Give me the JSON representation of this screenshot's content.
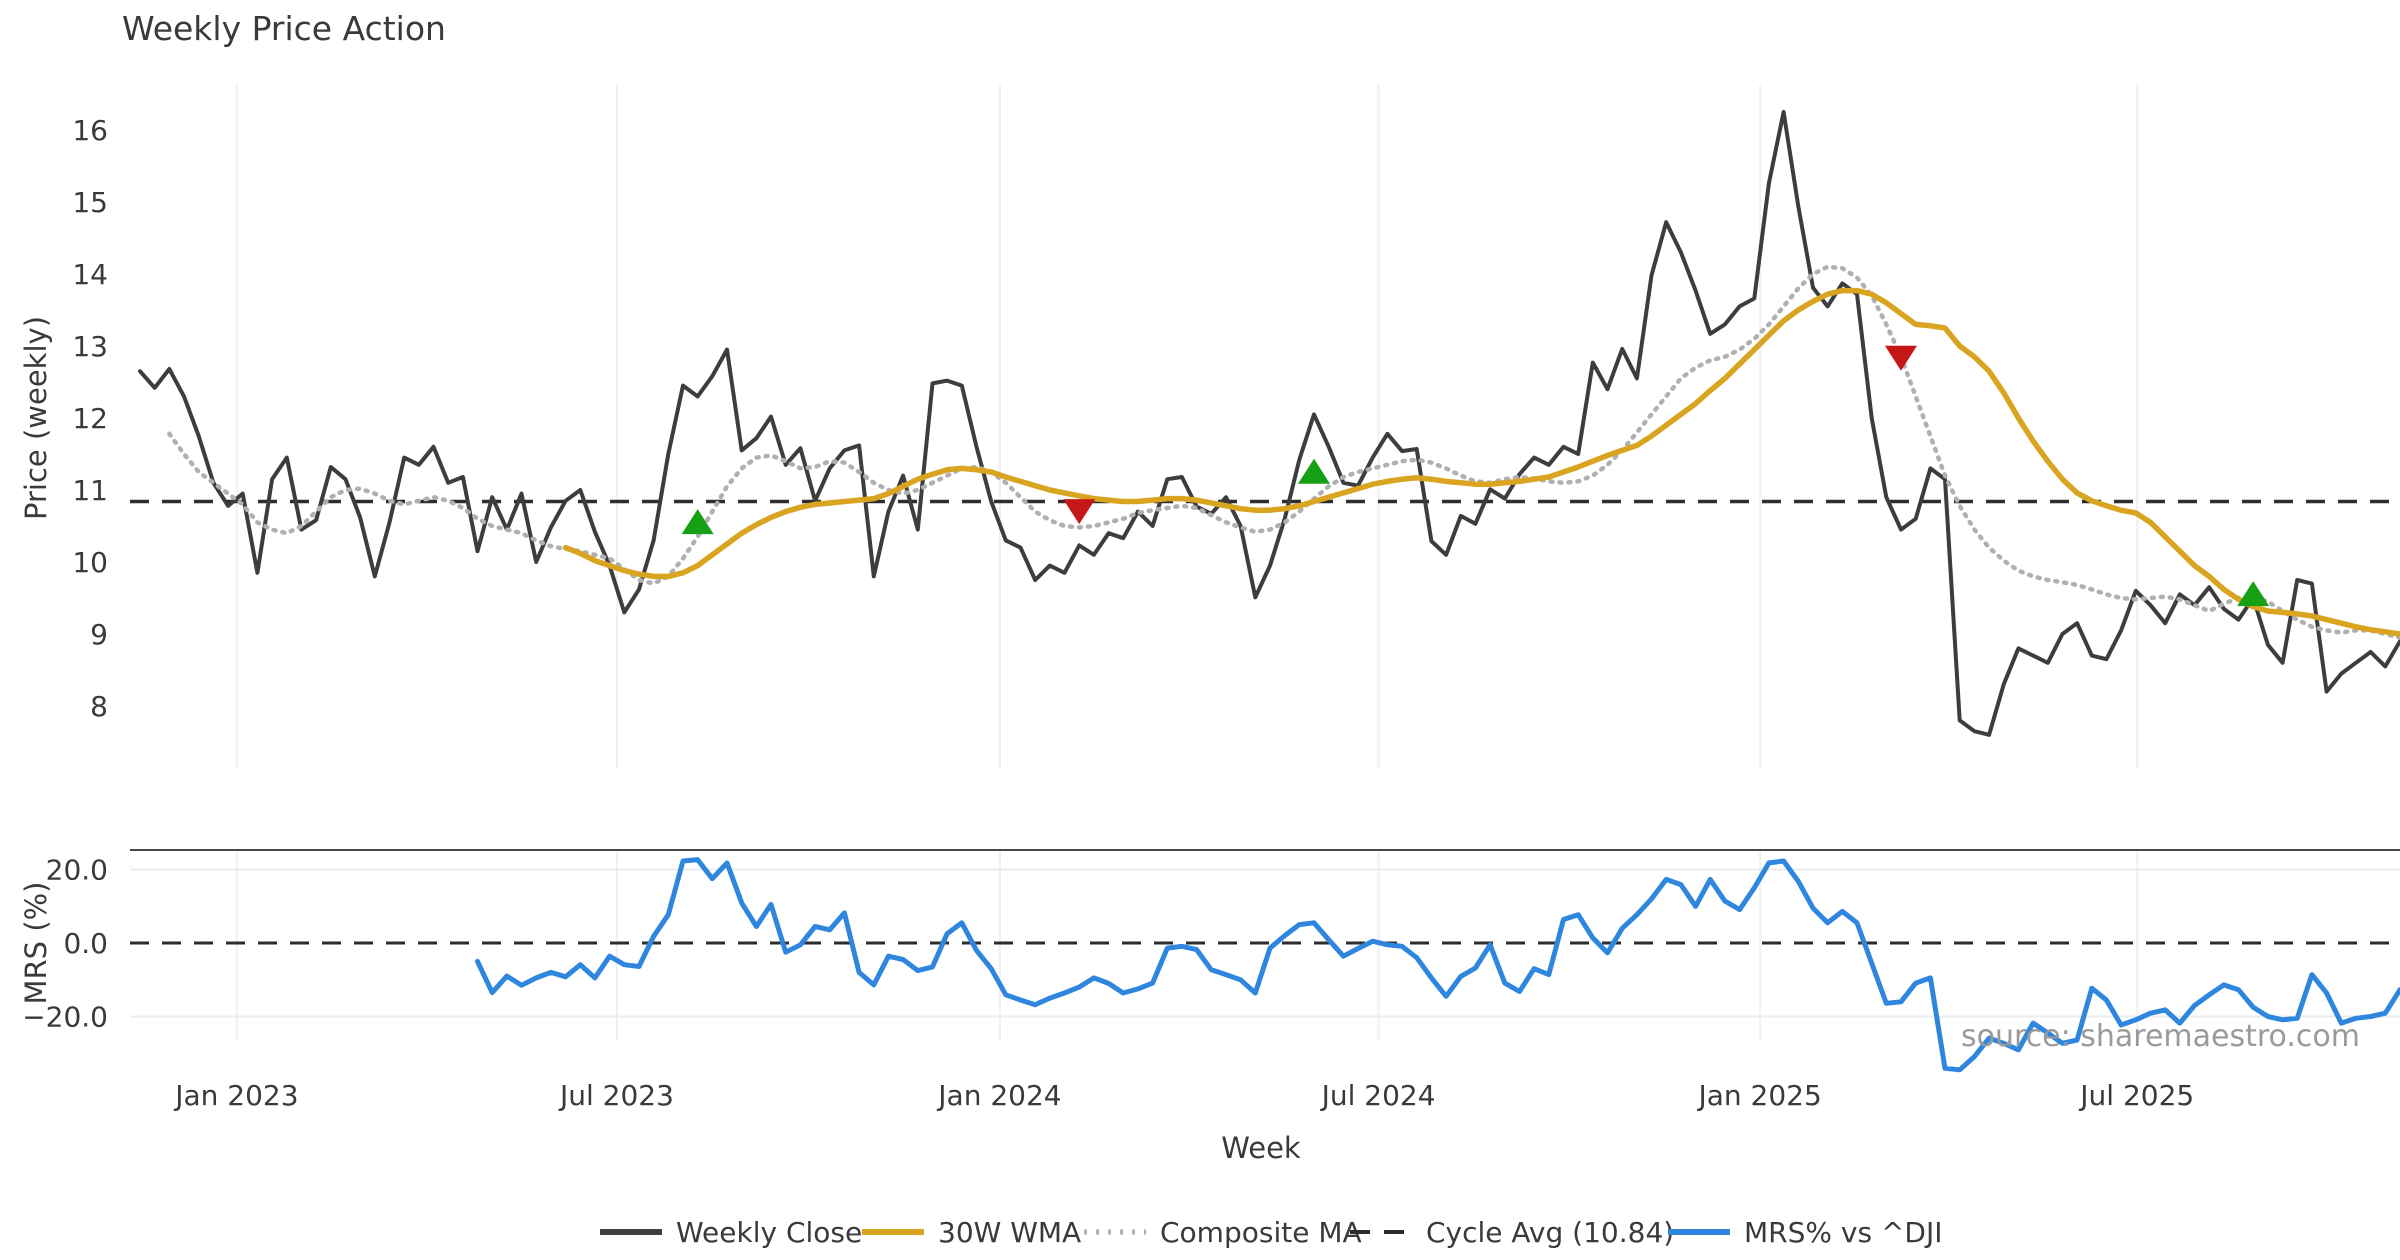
{
  "title": "Weekly Price Action",
  "source_watermark": "source: sharemaestro.com",
  "colors": {
    "close": "#3d3d3d",
    "wma": "#d9a521",
    "composite": "#b0b0b0",
    "cycle_dash": "#2d2d2d",
    "mrs": "#2e86de",
    "buy_marker": "#15a015",
    "sell_marker": "#c51717",
    "grid": "#eff0f3",
    "panel_spine": "#4a4a4a",
    "text": "#3a3a3a",
    "watermark": "#9a9a9a"
  },
  "chart_data": {
    "type": "line",
    "x_axis": {
      "label": "Week",
      "ticks": [
        {
          "label": "Jan 2023",
          "week": 6.6
        },
        {
          "label": "Jul 2023",
          "week": 32.5
        },
        {
          "label": "Jan 2024",
          "week": 58.6
        },
        {
          "label": "Jul 2024",
          "week": 84.4
        },
        {
          "label": "Jan 2025",
          "week": 110.4
        },
        {
          "label": "Jul 2025",
          "week": 136.1
        }
      ],
      "total_weeks": 154
    },
    "panels": [
      {
        "name": "price",
        "ylabel": "Price (weekly)",
        "yticks": [
          16,
          15,
          14,
          13,
          12,
          11,
          10,
          9,
          8
        ],
        "ylim": [
          7.1,
          16.6
        ],
        "grid": "vertical"
      },
      {
        "name": "mrs",
        "ylabel": "MRS (%)",
        "yticks": [
          {
            "v": 20,
            "label": "20.0"
          },
          {
            "v": 0,
            "label": "0.0"
          },
          {
            "v": -20,
            "label": "−20.0"
          }
        ],
        "ylim": [
          -36,
          25
        ],
        "zero_line": "dashed"
      }
    ],
    "cycle_avg": 10.84,
    "series": [
      {
        "name": "Weekly Close",
        "panel": "price",
        "style": "solid",
        "start_week": 0,
        "values": [
          12.65,
          12.42,
          12.68,
          12.3,
          11.75,
          11.1,
          10.78,
          10.95,
          9.85,
          11.15,
          11.45,
          10.45,
          10.58,
          11.32,
          11.15,
          10.62,
          9.8,
          10.55,
          11.45,
          11.35,
          11.6,
          11.1,
          11.18,
          10.15,
          10.9,
          10.45,
          10.95,
          10.0,
          10.48,
          10.85,
          11.0,
          10.42,
          9.95,
          9.3,
          9.62,
          10.3,
          11.5,
          12.45,
          12.3,
          12.58,
          12.95,
          11.55,
          11.72,
          12.02,
          11.35,
          11.58,
          10.85,
          11.3,
          11.55,
          11.62,
          9.8,
          10.7,
          11.2,
          10.45,
          12.48,
          12.52,
          12.45,
          11.6,
          10.84,
          10.3,
          10.2,
          9.75,
          9.95,
          9.85,
          10.23,
          10.1,
          10.4,
          10.33,
          10.7,
          10.5,
          11.15,
          11.18,
          10.77,
          10.67,
          10.9,
          10.5,
          9.51,
          9.95,
          10.6,
          11.42,
          12.05,
          11.6,
          11.1,
          11.06,
          11.45,
          11.78,
          11.54,
          11.57,
          10.29,
          10.1,
          10.64,
          10.53,
          11.01,
          10.88,
          11.22,
          11.45,
          11.35,
          11.6,
          11.5,
          12.77,
          12.4,
          12.96,
          12.55,
          13.98,
          14.72,
          14.3,
          13.77,
          13.17,
          13.3,
          13.55,
          13.66,
          15.26,
          16.25,
          14.94,
          13.81,
          13.55,
          13.87,
          13.72,
          12.0,
          10.9,
          10.45,
          10.6,
          11.3,
          11.15,
          7.8,
          7.65,
          7.6,
          8.3,
          8.8,
          8.7,
          8.6,
          9.0,
          9.15,
          8.7,
          8.65,
          9.05,
          9.6,
          9.4,
          9.15,
          9.55,
          9.4,
          9.65,
          9.35,
          9.2,
          9.5,
          8.85,
          8.6,
          9.75,
          9.7,
          8.2,
          8.45,
          8.6,
          8.75,
          8.55,
          8.9
        ]
      },
      {
        "name": "Composite MA",
        "panel": "price",
        "style": "dotted",
        "start_week": 2,
        "values": [
          11.78,
          11.5,
          11.25,
          11.1,
          10.95,
          10.8,
          10.55,
          10.45,
          10.4,
          10.5,
          10.7,
          10.9,
          11.0,
          11.02,
          10.95,
          10.85,
          10.8,
          10.85,
          10.9,
          10.85,
          10.75,
          10.6,
          10.5,
          10.45,
          10.4,
          10.3,
          10.22,
          10.18,
          10.15,
          10.1,
          10.05,
          9.9,
          9.75,
          9.7,
          9.8,
          10.05,
          10.35,
          10.7,
          11.05,
          11.3,
          11.45,
          11.48,
          11.4,
          11.3,
          11.32,
          11.4,
          11.38,
          11.25,
          11.1,
          11.0,
          10.95,
          11.0,
          11.1,
          11.2,
          11.3,
          11.32,
          11.25,
          11.1,
          10.9,
          10.7,
          10.58,
          10.5,
          10.48,
          10.5,
          10.55,
          10.6,
          10.68,
          10.72,
          10.75,
          10.78,
          10.75,
          10.65,
          10.55,
          10.48,
          10.42,
          10.45,
          10.55,
          10.7,
          10.88,
          11.05,
          11.18,
          11.25,
          11.3,
          11.35,
          11.4,
          11.42,
          11.38,
          11.3,
          11.2,
          11.12,
          11.1,
          11.15,
          11.18,
          11.16,
          11.12,
          11.1,
          11.12,
          11.2,
          11.35,
          11.55,
          11.8,
          12.05,
          12.3,
          12.55,
          12.7,
          12.8,
          12.85,
          12.95,
          13.1,
          13.3,
          13.55,
          13.8,
          14.0,
          14.1,
          14.08,
          13.95,
          13.7,
          13.3,
          12.85,
          12.3,
          11.75,
          11.2,
          10.78,
          10.45,
          10.2,
          10.02,
          9.88,
          9.8,
          9.75,
          9.72,
          9.68,
          9.62,
          9.55,
          9.5,
          9.48,
          9.5,
          9.52,
          9.48,
          9.4,
          9.32,
          9.42,
          9.5,
          9.52,
          9.45,
          9.32,
          9.2,
          9.1,
          9.05,
          9.02,
          9.05,
          9.05,
          9.0,
          8.95
        ]
      },
      {
        "name": "30W WMA",
        "panel": "price",
        "style": "solid",
        "start_week": 29,
        "values": [
          10.2,
          10.12,
          10.02,
          9.95,
          9.88,
          9.83,
          9.8,
          9.8,
          9.85,
          9.95,
          10.1,
          10.25,
          10.4,
          10.52,
          10.62,
          10.7,
          10.76,
          10.8,
          10.82,
          10.84,
          10.86,
          10.88,
          10.95,
          11.05,
          11.15,
          11.22,
          11.28,
          11.3,
          11.28,
          11.25,
          11.18,
          11.12,
          11.06,
          11.0,
          10.96,
          10.92,
          10.88,
          10.86,
          10.84,
          10.84,
          10.86,
          10.88,
          10.88,
          10.86,
          10.82,
          10.78,
          10.74,
          10.72,
          10.72,
          10.74,
          10.78,
          10.84,
          10.9,
          10.96,
          11.02,
          11.08,
          11.12,
          11.15,
          11.17,
          11.15,
          11.12,
          11.1,
          11.08,
          11.08,
          11.1,
          11.12,
          11.15,
          11.18,
          11.25,
          11.32,
          11.4,
          11.48,
          11.55,
          11.62,
          11.75,
          11.9,
          12.05,
          12.2,
          12.38,
          12.55,
          12.75,
          12.95,
          13.15,
          13.35,
          13.5,
          13.62,
          13.72,
          13.77,
          13.77,
          13.72,
          13.6,
          13.45,
          13.3,
          13.28,
          13.25,
          13.0,
          12.85,
          12.65,
          12.35,
          12.0,
          11.68,
          11.4,
          11.15,
          10.96,
          10.85,
          10.78,
          10.72,
          10.68,
          10.55,
          10.35,
          10.15,
          9.95,
          9.8,
          9.62,
          9.48,
          9.38,
          9.32,
          9.3,
          9.28,
          9.25,
          9.2,
          9.15,
          9.1,
          9.06,
          9.03,
          9.0
        ]
      },
      {
        "name": "MRS% vs ^DJI",
        "panel": "mrs",
        "style": "solid",
        "start_week": 23,
        "values": [
          -5.0,
          -13.5,
          -9.0,
          -11.5,
          -9.5,
          -8.0,
          -9.2,
          -5.9,
          -9.5,
          -3.6,
          -5.9,
          -6.4,
          1.8,
          7.7,
          22.3,
          22.7,
          17.5,
          21.8,
          10.9,
          4.5,
          10.5,
          -2.5,
          -0.5,
          4.5,
          3.6,
          8.2,
          -8.0,
          -11.4,
          -3.6,
          -4.5,
          -7.5,
          -6.5,
          2.5,
          5.5,
          -2.0,
          -7.0,
          -14.1,
          -15.5,
          -16.8,
          -15.0,
          -13.6,
          -12.0,
          -9.5,
          -11.0,
          -13.6,
          -12.5,
          -10.9,
          -1.4,
          -0.9,
          -1.8,
          -7.3,
          -8.6,
          -10.0,
          -13.6,
          -1.4,
          2.0,
          5.0,
          5.5,
          0.9,
          -3.6,
          -1.5,
          0.5,
          -0.5,
          -0.9,
          -4.0,
          -9.5,
          -14.5,
          -9.1,
          -6.8,
          -0.5,
          -10.9,
          -13.2,
          -7.0,
          -8.6,
          6.4,
          7.7,
          1.4,
          -2.7,
          4.0,
          7.7,
          12.0,
          17.3,
          15.9,
          10.0,
          17.3,
          11.4,
          9.1,
          15.0,
          21.8,
          22.3,
          16.8,
          9.5,
          5.5,
          8.6,
          5.5,
          -5.5,
          -16.4,
          -16.0,
          -10.9,
          -9.5,
          -34.1,
          -34.5,
          -30.9,
          -25.9,
          -27.3,
          -29.1,
          -21.8,
          -24.5,
          -27.3,
          -26.4,
          -12.3,
          -15.5,
          -22.3,
          -20.9,
          -19.1,
          -18.2,
          -21.8,
          -17.0,
          -14.1,
          -11.4,
          -12.7,
          -17.5,
          -20.0,
          -20.9,
          -20.5,
          -8.6,
          -13.6,
          -21.8,
          -20.5,
          -20.0,
          -19.1,
          -12.7
        ]
      }
    ],
    "markers": {
      "buy": [
        {
          "week": 38,
          "price": 10.54
        },
        {
          "week": 80,
          "price": 11.24
        },
        {
          "week": 144,
          "price": 9.54
        }
      ],
      "sell": [
        {
          "week": 64,
          "price": 10.72
        },
        {
          "week": 120,
          "price": 12.85
        }
      ]
    },
    "legend": [
      {
        "label": "Weekly Close",
        "style": "solid",
        "color_key": "close"
      },
      {
        "label": "30W WMA",
        "style": "solid",
        "color_key": "wma"
      },
      {
        "label": "Composite MA",
        "style": "dotted",
        "color_key": "composite"
      },
      {
        "label": "Cycle Avg (10.84)",
        "style": "dashed",
        "color_key": "cycle_dash"
      },
      {
        "label": "MRS% vs ^DJI",
        "style": "solid",
        "color_key": "mrs"
      }
    ],
    "legend_position": "bottom-center",
    "grid": "vertical-light"
  }
}
